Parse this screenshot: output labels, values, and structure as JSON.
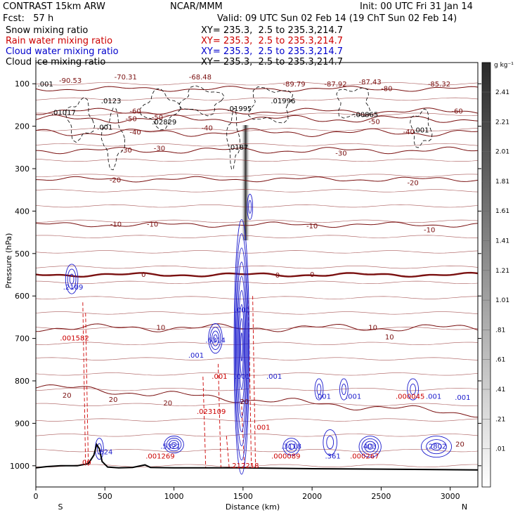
{
  "header": {
    "model": "CONTRAST 15km ARW",
    "forecast": "Fcst:   57 h",
    "center": "NCAR/MMM",
    "init": "Init: 00 UTC Fri 31 Jan 14",
    "valid": "Valid: 09 UTC Sun 02 Feb 14 (19 ChT Sun 02 Feb 14)"
  },
  "fields": [
    {
      "name": "Snow mixing ratio",
      "xy": "XY= 235.3,  2.5 to 235.3,214.7",
      "color": "#000000"
    },
    {
      "name": "Rain water mixing ratio",
      "xy": "XY= 235.3,  2.5 to 235.3,214.7",
      "color": "#cc0000"
    },
    {
      "name": "Cloud water mixing ratio",
      "xy": "XY= 235.3,  2.5 to 235.3,214.7",
      "color": "#0000cc"
    },
    {
      "name": "Cloud ice mixing ratio",
      "xy": "XY= 235.3,  2.5 to 235.3,214.7",
      "color": "#000000"
    }
  ],
  "colorbar": {
    "unit": "g kg⁻¹",
    "labels": [
      "2.41",
      "2.21",
      "2.01",
      "1.81",
      "1.61",
      "1.41",
      "1.21",
      "1.01",
      ".81",
      ".61",
      ".41",
      ".21",
      ".01"
    ]
  },
  "chart_data": {
    "type": "cross-section",
    "xlabel": "Distance (km)",
    "ylabel": "Pressure (hPa)",
    "xlim": [
      0,
      3200
    ],
    "ylim": [
      1050,
      50
    ],
    "xticks": [
      0,
      500,
      1000,
      1500,
      2000,
      2500,
      3000
    ],
    "yticks": [
      100,
      200,
      300,
      400,
      500,
      600,
      700,
      800,
      900,
      1000
    ],
    "left_end": "S",
    "right_end": "N",
    "temperature_contours": [
      {
        "label": "-80",
        "p": 112,
        "amp": 4,
        "lbl": [
          [
            2540,
            112
          ]
        ]
      },
      {
        "label": "-60",
        "p": 165,
        "amp": 5,
        "lbl": [
          [
            720,
            165
          ],
          [
            3050,
            165
          ]
        ]
      },
      {
        "label": "-50",
        "p": 183,
        "amp": 6,
        "lbl": [
          [
            690,
            183
          ],
          [
            880,
            180
          ],
          [
            2450,
            190
          ]
        ]
      },
      {
        "label": "-40",
        "p": 215,
        "amp": 6,
        "lbl": [
          [
            720,
            215
          ],
          [
            1240,
            205
          ],
          [
            2700,
            214
          ]
        ]
      },
      {
        "label": "-30",
        "p": 257,
        "amp": 5,
        "lbl": [
          [
            655,
            257
          ],
          [
            895,
            253
          ],
          [
            2210,
            264
          ]
        ]
      },
      {
        "label": "-20",
        "p": 325,
        "amp": 4,
        "lbl": [
          [
            575,
            327
          ],
          [
            2730,
            334
          ]
        ]
      },
      {
        "label": "-10",
        "p": 432,
        "amp": 4,
        "lbl": [
          [
            580,
            432
          ],
          [
            845,
            432
          ],
          [
            2000,
            436
          ],
          [
            2850,
            445
          ]
        ]
      },
      {
        "label": "0",
        "p": 550,
        "amp": 3,
        "lbl": [
          [
            780,
            550
          ],
          [
            1750,
            552
          ],
          [
            2000,
            550
          ]
        ]
      },
      {
        "label": "10",
        "p": 675,
        "amp": 6,
        "lbl": [
          [
            905,
            675
          ],
          [
            2440,
            675
          ],
          [
            2560,
            697
          ]
        ]
      },
      {
        "label": "20",
        "p": 845,
        "amp": 6,
        "lbl": [
          [
            225,
            835
          ],
          [
            560,
            845
          ],
          [
            955,
            853
          ],
          [
            1510,
            850
          ],
          [
            3070,
            950
          ]
        ]
      }
    ],
    "temperature_min_labels": [
      {
        "label": "-90.53",
        "x": 250,
        "p": 93
      },
      {
        "label": "-70.31",
        "x": 650,
        "p": 85
      },
      {
        "label": "-68.48",
        "x": 1190,
        "p": 85
      },
      {
        "label": "-89.79",
        "x": 1870,
        "p": 101
      },
      {
        "label": "-87.92",
        "x": 2170,
        "p": 101
      },
      {
        "label": "-87.43",
        "x": 2420,
        "p": 96
      },
      {
        "label": "-85.32",
        "x": 2920,
        "p": 101
      }
    ],
    "snow_ice_max_labels": [
      {
        "label": ".01017",
        "x": 200,
        "p": 168
      },
      {
        "label": ".0123",
        "x": 545,
        "p": 141
      },
      {
        "label": ".02829",
        "x": 930,
        "p": 191
      },
      {
        "label": ".01995",
        "x": 1475,
        "p": 159
      },
      {
        "label": ".01996",
        "x": 1790,
        "p": 141
      },
      {
        "label": ".00865",
        "x": 2390,
        "p": 173
      },
      {
        "label": ".0187",
        "x": 1465,
        "p": 250
      },
      {
        "label": ".001",
        "x": 70,
        "p": 101
      },
      {
        "label": ".001",
        "x": 500,
        "p": 203
      },
      {
        "label": ".001",
        "x": 2790,
        "p": 210
      }
    ],
    "rain_max_labels": [
      {
        "label": ".001582",
        "x": 280,
        "p": 700
      },
      {
        "label": ".023109",
        "x": 1270,
        "p": 873
      },
      {
        "label": ".001269",
        "x": 900,
        "p": 978
      },
      {
        "label": ".212218",
        "x": 1510,
        "p": 1000
      },
      {
        "label": ".000089",
        "x": 1810,
        "p": 978
      },
      {
        "label": ".000267",
        "x": 2380,
        "p": 978
      },
      {
        "label": ".000045",
        "x": 2710,
        "p": 837
      },
      {
        "label": ".001",
        "x": 1330,
        "p": 790
      },
      {
        "label": ".001",
        "x": 1640,
        "p": 910
      },
      {
        "label": ".00",
        "x": 360,
        "p": 993
      }
    ],
    "cloud_water_max_labels": [
      {
        "label": ".2109",
        "x": 270,
        "p": 580
      },
      {
        "label": ".6314",
        "x": 1300,
        "p": 705
      },
      {
        "label": ".001",
        "x": 1160,
        "p": 740
      },
      {
        "label": ".001",
        "x": 1495,
        "p": 634
      },
      {
        "label": ".001",
        "x": 1495,
        "p": 790
      },
      {
        "label": ".001",
        "x": 1725,
        "p": 790
      },
      {
        "label": ".624",
        "x": 500,
        "p": 968
      },
      {
        "label": ".5321",
        "x": 975,
        "p": 955
      },
      {
        "label": ".3118",
        "x": 1850,
        "p": 955
      },
      {
        "label": ".361",
        "x": 2150,
        "p": 978
      },
      {
        "label": ".403",
        "x": 2410,
        "p": 955
      },
      {
        "label": ".2802",
        "x": 2900,
        "p": 955
      },
      {
        "label": ".001",
        "x": 2080,
        "p": 837
      },
      {
        "label": ".001",
        "x": 2300,
        "p": 837
      },
      {
        "label": ".001",
        "x": 2880,
        "p": 837
      },
      {
        "label": ".001",
        "x": 3090,
        "p": 840
      }
    ],
    "terrain_surface_pressure": [
      [
        0,
        1005
      ],
      [
        80,
        1002
      ],
      [
        180,
        1000
      ],
      [
        300,
        1000
      ],
      [
        380,
        995
      ],
      [
        420,
        975
      ],
      [
        440,
        950
      ],
      [
        460,
        960
      ],
      [
        480,
        990
      ],
      [
        520,
        1003
      ],
      [
        600,
        1005
      ],
      [
        700,
        1004
      ],
      [
        790,
        998
      ],
      [
        830,
        1004
      ],
      [
        1000,
        1005
      ],
      [
        1500,
        1005
      ],
      [
        2000,
        1007
      ],
      [
        2500,
        1008
      ],
      [
        3200,
        1010
      ]
    ]
  }
}
